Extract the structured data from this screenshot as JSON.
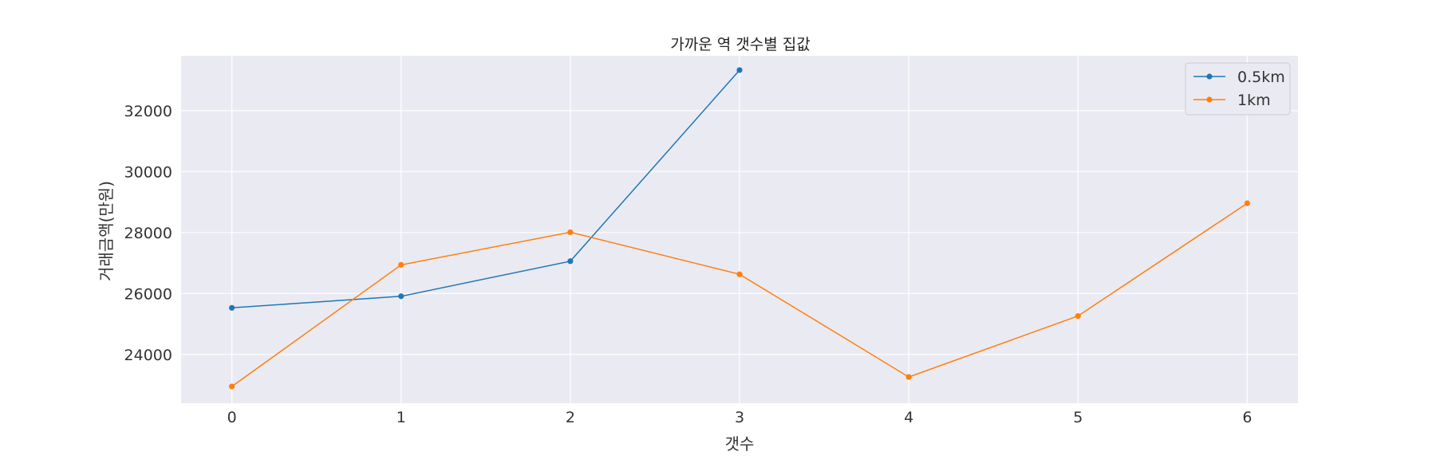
{
  "chart_data": {
    "type": "line",
    "title": "가까운 역 갯수별 집값",
    "xlabel": "갯수",
    "ylabel": "거래금액(만원)",
    "x_ticks": [
      0,
      1,
      2,
      3,
      4,
      5,
      6
    ],
    "y_ticks": [
      24000,
      26000,
      28000,
      30000,
      32000
    ],
    "xlim": [
      -0.3,
      6.3
    ],
    "ylim": [
      22400,
      33800
    ],
    "grid": true,
    "legend_position": "top-right",
    "series": [
      {
        "name": "0.5km",
        "color": "#1f77b4",
        "x": [
          0,
          1,
          2,
          3
        ],
        "y": [
          25530,
          25910,
          27060,
          33330
        ]
      },
      {
        "name": "1km",
        "color": "#ff7f0e",
        "x": [
          0,
          1,
          2,
          3,
          4,
          5,
          6
        ],
        "y": [
          22950,
          26940,
          28010,
          26630,
          23260,
          25260,
          28960
        ]
      }
    ]
  }
}
